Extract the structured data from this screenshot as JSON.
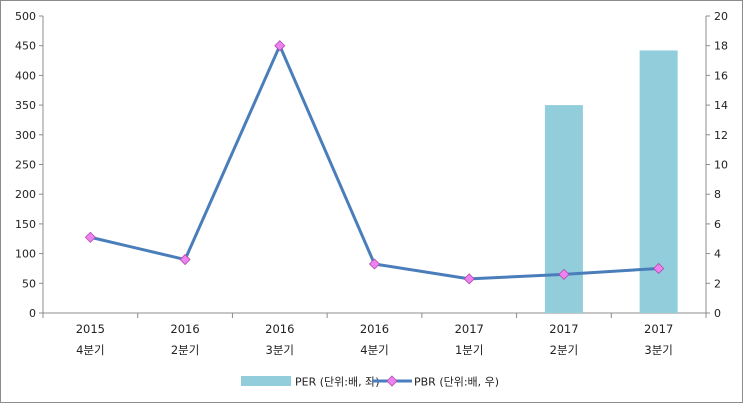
{
  "chart_data": {
    "type": "bar",
    "categories": [
      [
        "2015",
        "4분기"
      ],
      [
        "2016",
        "2분기"
      ],
      [
        "2016",
        "3분기"
      ],
      [
        "2016",
        "4분기"
      ],
      [
        "2017",
        "1분기"
      ],
      [
        "2017",
        "2분기"
      ],
      [
        "2017",
        "3분기"
      ]
    ],
    "series": [
      {
        "name": "PER (단위:배, 좌)",
        "type": "bar",
        "axis": "left",
        "color": "#92cddc",
        "values": [
          null,
          null,
          null,
          null,
          null,
          350,
          442
        ]
      },
      {
        "name": "PBR (단위:배, 우)",
        "type": "line",
        "axis": "right",
        "color": "#4a7ebb",
        "marker_color": "#ee82ee",
        "values": [
          5.1,
          3.6,
          18.0,
          3.3,
          2.3,
          2.6,
          3.0
        ]
      }
    ],
    "y_left": {
      "min": 0,
      "max": 500,
      "step": 50
    },
    "y_right": {
      "min": 0,
      "max": 20,
      "step": 2
    },
    "grid": false,
    "legend_position": "bottom"
  }
}
